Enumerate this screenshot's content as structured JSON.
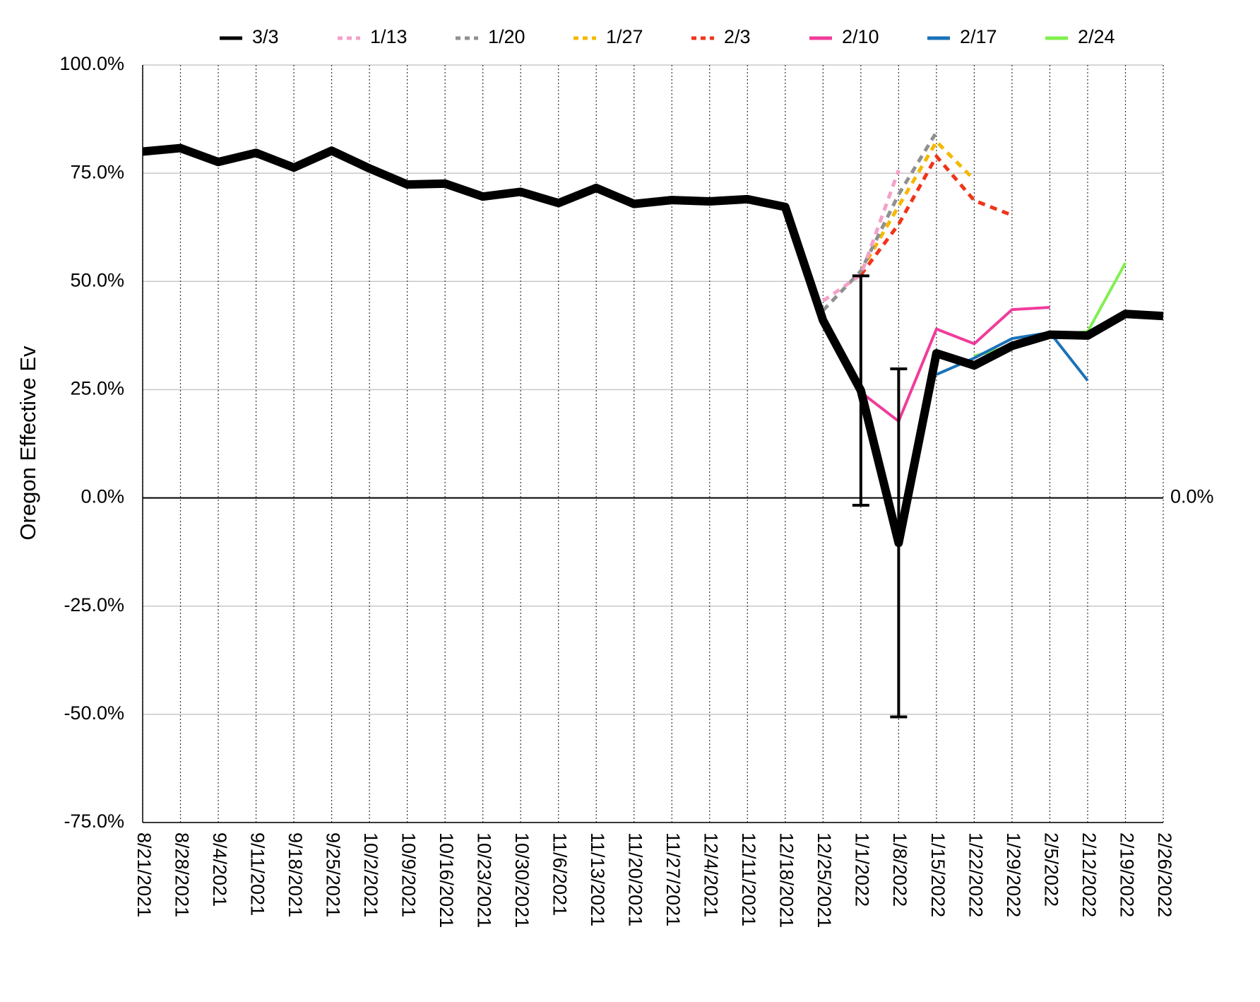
{
  "chart_data": {
    "type": "line",
    "y_label": "Oregon Effective Ev",
    "categories": [
      "8/21/2021",
      "8/28/2021",
      "9/4/2021",
      "9/11/2021",
      "9/18/2021",
      "9/25/2021",
      "10/2/2021",
      "10/9/2021",
      "10/16/2021",
      "10/23/2021",
      "10/30/2021",
      "11/6/2021",
      "11/13/2021",
      "11/20/2021",
      "11/27/2021",
      "12/4/2021",
      "12/11/2021",
      "12/18/2021",
      "12/25/2021",
      "1/1/2022",
      "1/8/2022",
      "1/15/2022",
      "1/22/2022",
      "1/29/2022",
      "2/5/2022",
      "2/12/2022",
      "2/19/2022",
      "2/26/2022"
    ],
    "series": [
      {
        "name": "3/3",
        "color": "#000000",
        "dashed": false,
        "width": 12,
        "values": [
          80.0,
          80.8,
          77.6,
          79.7,
          76.3,
          80.2,
          76.1,
          72.4,
          72.6,
          69.6,
          70.7,
          68.1,
          71.6,
          67.9,
          68.8,
          68.5,
          69.0,
          67.2,
          41.0,
          24.8,
          -10.4,
          33.4,
          30.6,
          35.1,
          37.7,
          37.5,
          42.5,
          42.0
        ],
        "errors": [
          null,
          null,
          null,
          null,
          null,
          null,
          null,
          null,
          null,
          null,
          null,
          null,
          null,
          null,
          null,
          null,
          null,
          null,
          null,
          26.5,
          40.2,
          null,
          null,
          null,
          null,
          null,
          null,
          null
        ]
      },
      {
        "name": "1/13",
        "color": "#f4a0c8",
        "dashed": true,
        "width": 5,
        "values": [
          null,
          null,
          null,
          null,
          null,
          null,
          null,
          null,
          null,
          null,
          null,
          null,
          null,
          null,
          null,
          null,
          null,
          null,
          45.5,
          51.5,
          75.7,
          null,
          null,
          null,
          null,
          null,
          null,
          null
        ]
      },
      {
        "name": "1/20",
        "color": "#909090",
        "dashed": true,
        "width": 5,
        "values": [
          null,
          null,
          null,
          null,
          null,
          null,
          null,
          null,
          null,
          null,
          null,
          null,
          null,
          null,
          null,
          null,
          null,
          null,
          43.3,
          52.4,
          70.1,
          84.5,
          null,
          null,
          null,
          null,
          null,
          null
        ]
      },
      {
        "name": "1/27",
        "color": "#f5b800",
        "dashed": true,
        "width": 5,
        "values": [
          null,
          null,
          null,
          null,
          null,
          null,
          null,
          null,
          null,
          null,
          null,
          null,
          null,
          null,
          null,
          null,
          null,
          null,
          null,
          52.4,
          67.4,
          82.3,
          73.5,
          null,
          null,
          null,
          null,
          null
        ]
      },
      {
        "name": "2/3",
        "color": "#f0341a",
        "dashed": true,
        "width": 5,
        "values": [
          null,
          null,
          null,
          null,
          null,
          null,
          null,
          null,
          null,
          null,
          null,
          null,
          null,
          null,
          null,
          null,
          null,
          null,
          null,
          51.5,
          63.2,
          78.9,
          68.7,
          65.3,
          null,
          null,
          null,
          null
        ]
      },
      {
        "name": "2/10",
        "color": "#f03c9b",
        "dashed": false,
        "width": 4,
        "values": [
          null,
          null,
          null,
          null,
          null,
          null,
          null,
          null,
          null,
          null,
          null,
          null,
          null,
          null,
          null,
          null,
          null,
          null,
          null,
          24.4,
          17.7,
          39.0,
          35.6,
          43.5,
          44.0,
          null,
          null,
          null
        ]
      },
      {
        "name": "2/17",
        "color": "#1a72b8",
        "dashed": false,
        "width": 4,
        "values": [
          null,
          null,
          null,
          null,
          null,
          null,
          null,
          null,
          null,
          null,
          null,
          null,
          null,
          null,
          null,
          null,
          null,
          null,
          null,
          null,
          null,
          28.5,
          32.3,
          36.8,
          38.2,
          27.1,
          null,
          null
        ]
      },
      {
        "name": "2/24",
        "color": "#80f050",
        "dashed": false,
        "width": 4,
        "values": [
          null,
          null,
          null,
          null,
          null,
          null,
          null,
          null,
          null,
          null,
          null,
          null,
          null,
          null,
          null,
          null,
          null,
          null,
          null,
          null,
          null,
          null,
          32.8,
          35.1,
          37.7,
          38.4,
          54.3,
          null
        ]
      }
    ],
    "ylim": [
      -75,
      100
    ],
    "yticks": [
      {
        "value": -75,
        "label": "-75.0%"
      },
      {
        "value": -50,
        "label": "-50.0%"
      },
      {
        "value": -25,
        "label": "-25.0%"
      },
      {
        "value": 0,
        "label": "0.0%"
      },
      {
        "value": 25,
        "label": "25.0%"
      },
      {
        "value": 50,
        "label": "50.0%"
      },
      {
        "value": 75,
        "label": "75.0%"
      },
      {
        "value": 100,
        "label": "100.0%"
      }
    ],
    "y2lim": [
      -75,
      100
    ],
    "y2ticks": [
      {
        "value": 0,
        "label": "0.0%"
      }
    ],
    "grid": true,
    "legend": "top"
  }
}
